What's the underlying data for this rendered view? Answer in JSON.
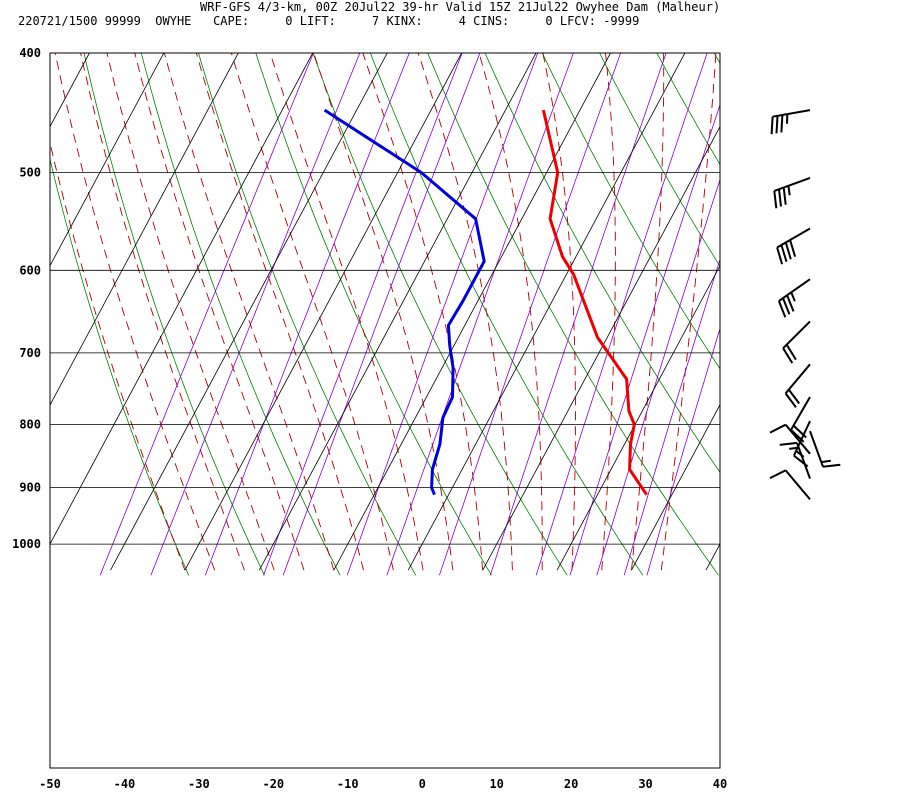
{
  "header": {
    "title": "WRF-GFS 4/3-km, 00Z 20Jul22 39-hr Valid 15Z 21Jul22 Owyhee Dam (Malheur)",
    "info": "220721/1500 99999  OWYHE   CAPE:     0 LIFT:     7 KINX:     4 CINS:     0 LFCV: -9999"
  },
  "chart_data": {
    "type": "skew-t",
    "x_ticks": [
      "-50",
      "-40",
      "-30",
      "-20",
      "-10",
      "0",
      "10",
      "20",
      "30",
      "40"
    ],
    "y_ticks": [
      "400",
      "500",
      "600",
      "700",
      "800",
      "900",
      "1000"
    ],
    "xlim": [
      -50,
      40
    ],
    "ylim_pressure": [
      1050,
      400
    ],
    "colors": {
      "temperature": "#ee0000",
      "dewpoint": "#0000dd",
      "isotherm": "#000000",
      "dry_adiabat": "#008000",
      "moist_adiabat": "#aa0000",
      "mixing_ratio": "#8800cc",
      "wind_barb": "#000000"
    },
    "series": [
      {
        "name": "temperature",
        "points": [
          [
            26.6,
            912
          ],
          [
            22.5,
            870
          ],
          [
            20.8,
            830
          ],
          [
            19.9,
            800
          ],
          [
            18.2,
            780
          ],
          [
            15.6,
            735
          ],
          [
            8.7,
            680
          ],
          [
            1,
            605
          ],
          [
            -1.8,
            585
          ],
          [
            -6.2,
            545
          ],
          [
            -8.5,
            500
          ],
          [
            -14.9,
            445
          ]
        ]
      },
      {
        "name": "dewpoint",
        "points": [
          [
            -1.9,
            912
          ],
          [
            -2.8,
            900
          ],
          [
            -4,
            870
          ],
          [
            -4.8,
            830
          ],
          [
            -6.3,
            790
          ],
          [
            -6.5,
            760
          ],
          [
            -8.5,
            720
          ],
          [
            -10.6,
            690
          ],
          [
            -12.2,
            665
          ],
          [
            -12,
            635
          ],
          [
            -12,
            590
          ],
          [
            -16.2,
            545
          ],
          [
            -26.8,
            500
          ],
          [
            -44.3,
            445
          ]
        ]
      }
    ],
    "wind_barbs": [
      {
        "pressure": 445,
        "dir": 260,
        "speed": 35
      },
      {
        "pressure": 505,
        "dir": 250,
        "speed": 35
      },
      {
        "pressure": 555,
        "dir": 240,
        "speed": 40
      },
      {
        "pressure": 610,
        "dir": 235,
        "speed": 35
      },
      {
        "pressure": 660,
        "dir": 225,
        "speed": 20
      },
      {
        "pressure": 715,
        "dir": 220,
        "speed": 20
      },
      {
        "pressure": 760,
        "dir": 210,
        "speed": 20
      },
      {
        "pressure": 795,
        "dir": 205,
        "speed": 15
      },
      {
        "pressure": 810,
        "dir": 160,
        "speed": 15
      },
      {
        "pressure": 845,
        "dir": 320,
        "speed": 10
      },
      {
        "pressure": 885,
        "dir": 340,
        "speed": 15
      },
      {
        "pressure": 920,
        "dir": 320,
        "speed": 10
      }
    ]
  }
}
